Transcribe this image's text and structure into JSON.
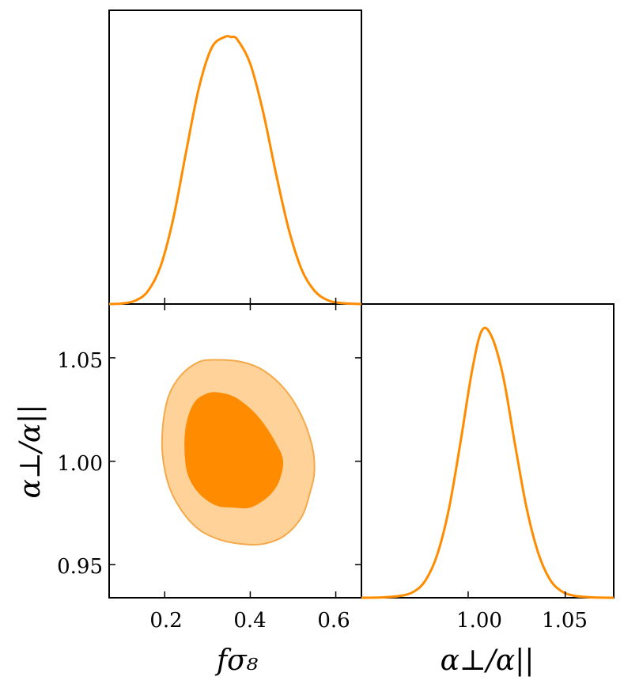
{
  "chart_data": [
    {
      "panel": "top-left",
      "type": "line",
      "description_source": "1D marginal density of f sigma_8",
      "x": [
        0.07,
        0.1,
        0.13,
        0.16,
        0.19,
        0.22,
        0.25,
        0.28,
        0.31,
        0.34,
        0.355,
        0.37,
        0.4,
        0.43,
        0.46,
        0.49,
        0.52,
        0.55,
        0.58,
        0.61,
        0.64,
        0.66
      ],
      "values": [
        0.0,
        0.002,
        0.012,
        0.047,
        0.14,
        0.32,
        0.57,
        0.81,
        0.96,
        1.0,
        1.0,
        0.99,
        0.9,
        0.72,
        0.49,
        0.28,
        0.13,
        0.05,
        0.015,
        0.004,
        0.001,
        0.0
      ],
      "xlim": [
        0.07,
        0.66
      ],
      "ylim": [
        0,
        1.1
      ],
      "color": "#ff8c00"
    },
    {
      "panel": "bottom-left",
      "type": "contour",
      "xlabel": "fσ₈",
      "ylabel": "α⊥/α||",
      "xlim": [
        0.07,
        0.66
      ],
      "ylim": [
        0.934,
        1.076
      ],
      "xticks": [
        "0.2",
        "0.4",
        "0.6"
      ],
      "xtick_values": [
        0.2,
        0.4,
        0.6
      ],
      "yticks": [
        "0.95",
        "1.00",
        "1.05"
      ],
      "ytick_values": [
        0.95,
        1.0,
        1.05
      ],
      "contours": [
        {
          "level": "outer",
          "fill": "#ffd29a",
          "stroke": "#f4a94a",
          "points": [
            [
              0.32,
              1.049
            ],
            [
              0.38,
              1.048
            ],
            [
              0.43,
              1.044
            ],
            [
              0.48,
              1.035
            ],
            [
              0.52,
              1.022
            ],
            [
              0.545,
              1.007
            ],
            [
              0.55,
              0.995
            ],
            [
              0.54,
              0.985
            ],
            [
              0.52,
              0.973
            ],
            [
              0.48,
              0.964
            ],
            [
              0.43,
              0.96
            ],
            [
              0.38,
              0.96
            ],
            [
              0.33,
              0.962
            ],
            [
              0.28,
              0.967
            ],
            [
              0.24,
              0.976
            ],
            [
              0.21,
              0.988
            ],
            [
              0.195,
              1.003
            ],
            [
              0.196,
              1.018
            ],
            [
              0.21,
              1.032
            ],
            [
              0.24,
              1.042
            ],
            [
              0.28,
              1.048
            ]
          ]
        },
        {
          "level": "inner",
          "fill": "#ff8c00",
          "stroke": "#ff8c00",
          "points": [
            [
              0.32,
              1.033
            ],
            [
              0.36,
              1.031
            ],
            [
              0.4,
              1.025
            ],
            [
              0.43,
              1.018
            ],
            [
              0.46,
              1.008
            ],
            [
              0.475,
              1.0
            ],
            [
              0.465,
              0.99
            ],
            [
              0.44,
              0.983
            ],
            [
              0.4,
              0.978
            ],
            [
              0.36,
              0.978
            ],
            [
              0.32,
              0.979
            ],
            [
              0.28,
              0.985
            ],
            [
              0.255,
              0.994
            ],
            [
              0.248,
              1.006
            ],
            [
              0.252,
              1.018
            ],
            [
              0.27,
              1.028
            ],
            [
              0.295,
              1.032
            ]
          ]
        }
      ]
    },
    {
      "panel": "bottom-right",
      "type": "line",
      "description_source": "1D marginal density of alpha_perp/alpha_par",
      "x": [
        0.945,
        0.955,
        0.965,
        0.972,
        0.978,
        0.984,
        0.99,
        0.996,
        1.002,
        1.007,
        1.012,
        1.018,
        1.024,
        1.03,
        1.036,
        1.042,
        1.048,
        1.055,
        1.065,
        1.075
      ],
      "values": [
        0.0,
        0.001,
        0.007,
        0.023,
        0.065,
        0.16,
        0.33,
        0.58,
        0.85,
        1.0,
        0.98,
        0.83,
        0.58,
        0.34,
        0.17,
        0.07,
        0.025,
        0.007,
        0.001,
        0.0
      ],
      "xlabel": "α⊥/α||",
      "xlim": [
        0.945,
        1.075
      ],
      "ylim": [
        0,
        1.1
      ],
      "xticks": [
        "1.00",
        "1.05"
      ],
      "xtick_values": [
        1.0,
        1.05
      ],
      "color": "#ff8c00"
    }
  ]
}
